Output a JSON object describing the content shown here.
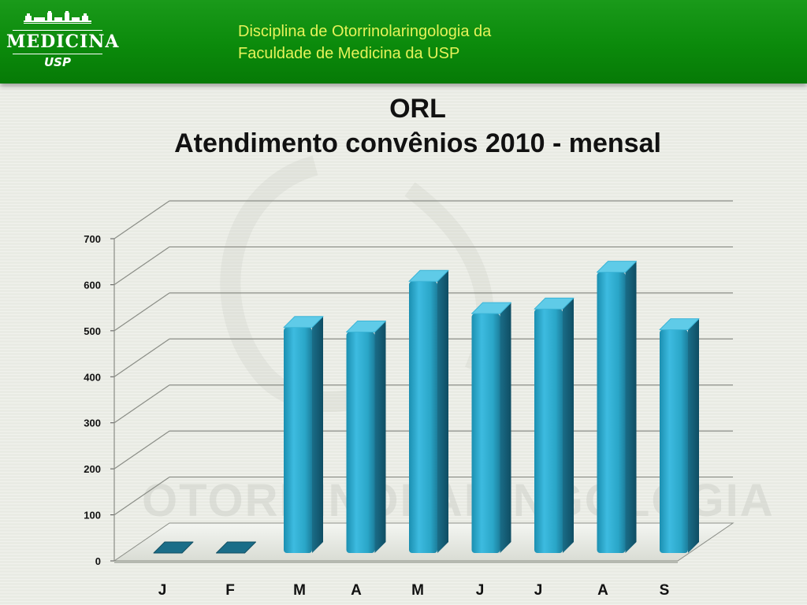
{
  "header": {
    "logo_text": "MEDICINA",
    "logo_sub": "USP",
    "title_line1": "Disciplina de Otorrinolaringologia da",
    "title_line2": "Faculdade de Medicina da USP"
  },
  "slide": {
    "title_line1": "ORL",
    "title_line2": "Atendimento convênios 2010 - mensal"
  },
  "chart_data": {
    "type": "bar",
    "categories": [
      "J",
      "F",
      "M",
      "A",
      "M",
      "J",
      "J",
      "A",
      "S"
    ],
    "values": [
      0,
      0,
      490,
      480,
      590,
      520,
      530,
      610,
      485
    ],
    "ylim": [
      0,
      700
    ],
    "yticks": [
      0,
      100,
      200,
      300,
      400,
      500,
      600,
      700
    ],
    "grid": true,
    "bar_color": "#2aa6c8",
    "background_watermark": "OTORRINOLARINGOLOGIA"
  }
}
